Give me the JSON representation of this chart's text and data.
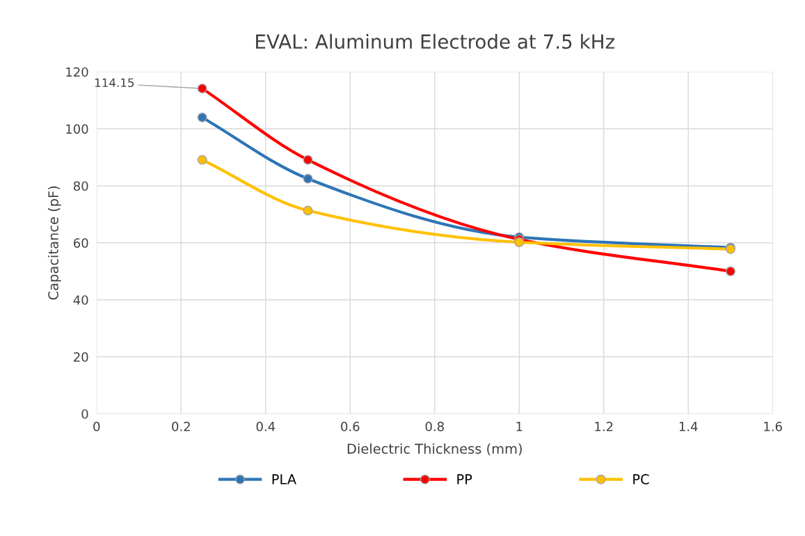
{
  "chart_data": {
    "type": "line",
    "title": "EVAL: Aluminum Electrode at 7.5 kHz",
    "xlabel": "Dielectric Thickness (mm)",
    "ylabel": "Capacitance (pF)",
    "x": [
      0.25,
      0.5,
      1,
      1.5
    ],
    "series": [
      {
        "name": "PLA",
        "color": "#2e75b6",
        "values": [
          104,
          82.5,
          62,
          58.3
        ]
      },
      {
        "name": "PP",
        "color": "#ff0000",
        "values": [
          114.15,
          89.1,
          61.2,
          50
        ]
      },
      {
        "name": "PC",
        "color": "#ffc000",
        "values": [
          89.1,
          71.3,
          60.2,
          57.8
        ]
      }
    ],
    "xlim": [
      0,
      1.6
    ],
    "xticks": [
      0,
      0.2,
      0.4,
      0.6,
      0.8,
      1,
      1.2,
      1.4,
      1.6
    ],
    "ylim": [
      0,
      120
    ],
    "yticks": [
      0,
      20,
      40,
      60,
      80,
      100,
      120
    ],
    "annotations": [
      {
        "text": "114.15",
        "x": 0.25,
        "y": 114.15
      }
    ],
    "grid": true,
    "legend": "bottom",
    "marker": "circle",
    "line_style": "solid"
  }
}
